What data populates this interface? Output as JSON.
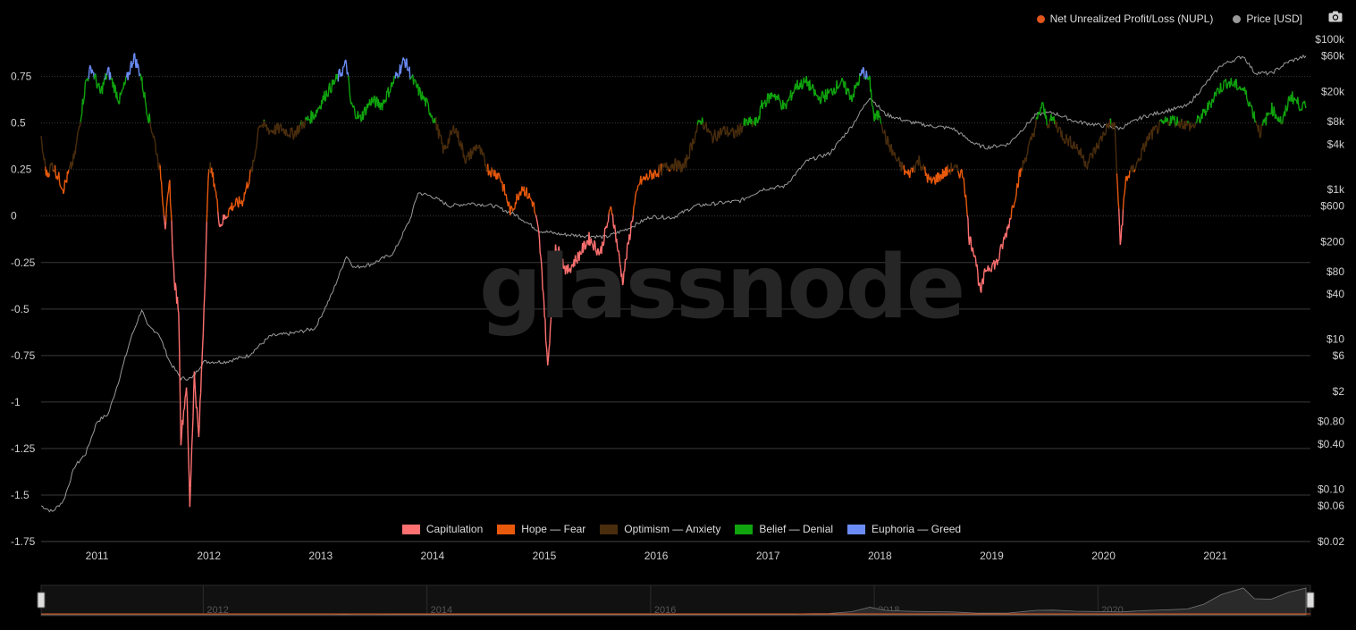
{
  "header": {
    "legend": [
      {
        "label": "Net Unrealized Profit/Loss (NUPL)",
        "color": "#e0561c"
      },
      {
        "label": "Price [USD]",
        "color": "#9a9a9a"
      }
    ],
    "camera_icon": "camera-icon"
  },
  "watermark": "glassnode",
  "zone_legend": [
    {
      "label": "Capitulation",
      "color": "#ff7070"
    },
    {
      "label": "Hope — Fear",
      "color": "#e8590c"
    },
    {
      "label": "Optimism — Anxiety",
      "color": "#4a2d0d"
    },
    {
      "label": "Belief — Denial",
      "color": "#10a40e"
    },
    {
      "label": "Euphoria — Greed",
      "color": "#6b8cf7"
    }
  ],
  "chart_data": {
    "type": "line",
    "x_ticks": [
      "2011",
      "2012",
      "2013",
      "2014",
      "2015",
      "2016",
      "2017",
      "2018",
      "2019",
      "2020",
      "2021"
    ],
    "y_left_ticks": [
      {
        "value": 0.75,
        "label": "0.75"
      },
      {
        "value": 0.5,
        "label": "0.5"
      },
      {
        "value": 0.25,
        "label": "0.25"
      },
      {
        "value": 0,
        "label": "0"
      },
      {
        "value": -0.25,
        "label": "-0.25"
      },
      {
        "value": -0.5,
        "label": "-0.5"
      },
      {
        "value": -0.75,
        "label": "-0.75"
      },
      {
        "value": -1,
        "label": "-1"
      },
      {
        "value": -1.25,
        "label": "-1.25"
      },
      {
        "value": -1.5,
        "label": "-1.5"
      },
      {
        "value": -1.75,
        "label": "-1.75"
      }
    ],
    "y_left_range": [
      -1.75,
      0.95
    ],
    "y_right_ticks": [
      {
        "value": 100000,
        "label": "$100k"
      },
      {
        "value": 60000,
        "label": "$60k"
      },
      {
        "value": 20000,
        "label": "$20k"
      },
      {
        "value": 8000,
        "label": "$8k"
      },
      {
        "value": 4000,
        "label": "$4k"
      },
      {
        "value": 1000,
        "label": "$1k"
      },
      {
        "value": 600,
        "label": "$600"
      },
      {
        "value": 200,
        "label": "$200"
      },
      {
        "value": 80,
        "label": "$80"
      },
      {
        "value": 40,
        "label": "$40"
      },
      {
        "value": 10,
        "label": "$10"
      },
      {
        "value": 6,
        "label": "$6"
      },
      {
        "value": 2,
        "label": "$2"
      },
      {
        "value": 0.8,
        "label": "$0.80"
      },
      {
        "value": 0.4,
        "label": "$0.40"
      },
      {
        "value": 0.1,
        "label": "$0.10"
      },
      {
        "value": 0.06,
        "label": "$0.06"
      },
      {
        "value": 0.02,
        "label": "$0.02"
      }
    ],
    "y_right_scale": "log",
    "y_right_range": [
      0.02,
      100000
    ],
    "zones": [
      {
        "name": "Capitulation",
        "max": 0,
        "color": "#ff7070"
      },
      {
        "name": "Hope — Fear",
        "max": 0.25,
        "color": "#e8590c"
      },
      {
        "name": "Optimism — Anxiety",
        "max": 0.5,
        "color": "#4a2d0d"
      },
      {
        "name": "Belief — Denial",
        "max": 0.75,
        "color": "#10a40e"
      },
      {
        "name": "Euphoria — Greed",
        "max": 1.0,
        "color": "#6b8cf7"
      }
    ],
    "nupl": {
      "x": [
        2010.55,
        2010.6,
        2010.65,
        2010.75,
        2010.85,
        2010.95,
        2011.0,
        2011.08,
        2011.15,
        2011.25,
        2011.32,
        2011.38,
        2011.44,
        2011.5,
        2011.56,
        2011.62,
        2011.66,
        2011.7,
        2011.74,
        2011.78,
        2011.8,
        2011.85,
        2011.88,
        2011.92,
        2011.96,
        2012.0,
        2012.05,
        2012.1,
        2012.15,
        2012.25,
        2012.35,
        2012.45,
        2012.5,
        2012.6,
        2012.7,
        2012.8,
        2012.9,
        2013.0,
        2013.1,
        2013.2,
        2013.28,
        2013.32,
        2013.4,
        2013.5,
        2013.6,
        2013.7,
        2013.8,
        2013.88,
        2013.92,
        2014.0,
        2014.08,
        2014.15,
        2014.25,
        2014.35,
        2014.45,
        2014.55,
        2014.65,
        2014.75,
        2014.85,
        2014.95,
        2015.0,
        2015.04,
        2015.08,
        2015.15,
        2015.25,
        2015.35,
        2015.45,
        2015.55,
        2015.65,
        2015.75,
        2015.85,
        2015.9,
        2016.0,
        2016.1,
        2016.2,
        2016.3,
        2016.4,
        2016.45,
        2016.55,
        2016.65,
        2016.75,
        2016.85,
        2016.95,
        2017.0,
        2017.1,
        2017.2,
        2017.3,
        2017.4,
        2017.5,
        2017.6,
        2017.7,
        2017.8,
        2017.9,
        2017.96,
        2018.0,
        2018.05,
        2018.1,
        2018.2,
        2018.3,
        2018.4,
        2018.5,
        2018.6,
        2018.7,
        2018.8,
        2018.85,
        2018.9,
        2018.95,
        2019.0,
        2019.1,
        2019.2,
        2019.3,
        2019.4,
        2019.5,
        2019.55,
        2019.6,
        2019.7,
        2019.8,
        2019.9,
        2020.0,
        2020.1,
        2020.15,
        2020.2,
        2020.25,
        2020.35,
        2020.45,
        2020.55,
        2020.65,
        2020.75,
        2020.85,
        2020.95,
        2021.0,
        2021.05,
        2021.15,
        2021.25,
        2021.3,
        2021.35,
        2021.45,
        2021.55,
        2021.65,
        2021.72,
        2021.8,
        2021.86
      ],
      "y": [
        0.4,
        0.22,
        0.28,
        0.15,
        0.32,
        0.72,
        0.8,
        0.66,
        0.78,
        0.62,
        0.74,
        0.86,
        0.76,
        0.56,
        0.42,
        0.22,
        -0.05,
        0.18,
        -0.35,
        -0.5,
        -1.2,
        -0.9,
        -1.55,
        -0.85,
        -1.2,
        -0.6,
        0.28,
        0.18,
        -0.05,
        0.05,
        0.08,
        0.28,
        0.5,
        0.46,
        0.47,
        0.44,
        0.5,
        0.55,
        0.66,
        0.74,
        0.82,
        0.6,
        0.52,
        0.62,
        0.6,
        0.72,
        0.84,
        0.72,
        0.68,
        0.6,
        0.5,
        0.35,
        0.48,
        0.3,
        0.38,
        0.25,
        0.22,
        0.02,
        0.16,
        0.07,
        -0.1,
        -0.4,
        -0.82,
        -0.15,
        -0.3,
        -0.22,
        -0.12,
        -0.2,
        0.05,
        -0.35,
        0.04,
        0.18,
        0.22,
        0.25,
        0.28,
        0.26,
        0.44,
        0.52,
        0.42,
        0.46,
        0.44,
        0.5,
        0.5,
        0.6,
        0.66,
        0.58,
        0.7,
        0.72,
        0.63,
        0.66,
        0.72,
        0.64,
        0.78,
        0.72,
        0.52,
        0.55,
        0.42,
        0.3,
        0.22,
        0.3,
        0.18,
        0.22,
        0.26,
        0.22,
        -0.12,
        -0.2,
        -0.42,
        -0.28,
        -0.25,
        -0.05,
        0.22,
        0.4,
        0.6,
        0.5,
        0.52,
        0.42,
        0.38,
        0.28,
        0.38,
        0.5,
        0.48,
        -0.15,
        0.2,
        0.28,
        0.42,
        0.48,
        0.52,
        0.5,
        0.48,
        0.55,
        0.6,
        0.66,
        0.72,
        0.7,
        0.68,
        0.62,
        0.45,
        0.58,
        0.5,
        0.65,
        0.6,
        0.58
      ],
      "color": "#e0561c"
    },
    "price": {
      "x": [
        2010.55,
        2010.65,
        2010.75,
        2010.85,
        2010.95,
        2011.05,
        2011.15,
        2011.25,
        2011.35,
        2011.45,
        2011.5,
        2011.6,
        2011.7,
        2011.8,
        2011.9,
        2012.0,
        2012.2,
        2012.4,
        2012.6,
        2012.8,
        2013.0,
        2013.15,
        2013.28,
        2013.35,
        2013.5,
        2013.7,
        2013.85,
        2013.92,
        2014.05,
        2014.2,
        2014.4,
        2014.6,
        2014.8,
        2015.0,
        2015.2,
        2015.4,
        2015.6,
        2015.8,
        2016.0,
        2016.2,
        2016.4,
        2016.6,
        2016.8,
        2017.0,
        2017.2,
        2017.4,
        2017.6,
        2017.8,
        2017.96,
        2018.1,
        2018.3,
        2018.5,
        2018.7,
        2018.9,
        2019.0,
        2019.2,
        2019.45,
        2019.6,
        2019.8,
        2020.0,
        2020.2,
        2020.4,
        2020.6,
        2020.8,
        2020.95,
        2021.1,
        2021.3,
        2021.4,
        2021.55,
        2021.7,
        2021.86
      ],
      "y": [
        0.06,
        0.05,
        0.07,
        0.2,
        0.3,
        0.8,
        1.0,
        3,
        10,
        25,
        15,
        12,
        5,
        3,
        3,
        5,
        5,
        6,
        11,
        12,
        14,
        40,
        130,
        90,
        100,
        140,
        400,
        900,
        800,
        600,
        650,
        600,
        450,
        280,
        250,
        240,
        230,
        300,
        430,
        420,
        600,
        650,
        700,
        1000,
        1100,
        2400,
        3000,
        7000,
        17000,
        10000,
        8000,
        7000,
        6500,
        4000,
        3600,
        4000,
        10000,
        10500,
        8000,
        7200,
        6500,
        9200,
        11000,
        13000,
        24000,
        45000,
        60000,
        36000,
        35000,
        50000,
        60000
      ],
      "color": "#9a9a9a"
    },
    "navigator_ticks": [
      "2012",
      "2014",
      "2016",
      "2018",
      "2020"
    ]
  }
}
